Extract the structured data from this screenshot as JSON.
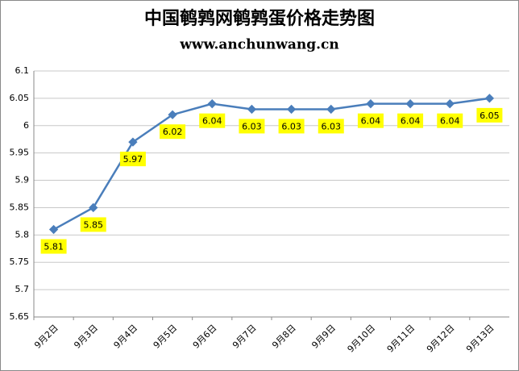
{
  "chart_data": {
    "type": "line",
    "title": "中国鹌鹑网鹌鹑蛋价格走势图",
    "subtitle": "www.anchunwang.cn",
    "categories": [
      "9月2日",
      "9月3日",
      "9月4日",
      "9月5日",
      "9月6日",
      "9月7日",
      "9月8日",
      "9月9日",
      "9月10日",
      "9月11日",
      "9月12日",
      "9月13日"
    ],
    "values": [
      5.81,
      5.85,
      5.97,
      6.02,
      6.04,
      6.03,
      6.03,
      6.03,
      6.04,
      6.04,
      6.04,
      6.05
    ],
    "color": "#4a7ebb",
    "label_color": "#ffff00",
    "title_color": "#e00000",
    "ylim": [
      5.65,
      6.1
    ],
    "yticks": [
      5.65,
      5.7,
      5.75,
      5.8,
      5.85,
      5.9,
      5.95,
      6,
      6.05,
      6.1
    ],
    "grid": true
  }
}
